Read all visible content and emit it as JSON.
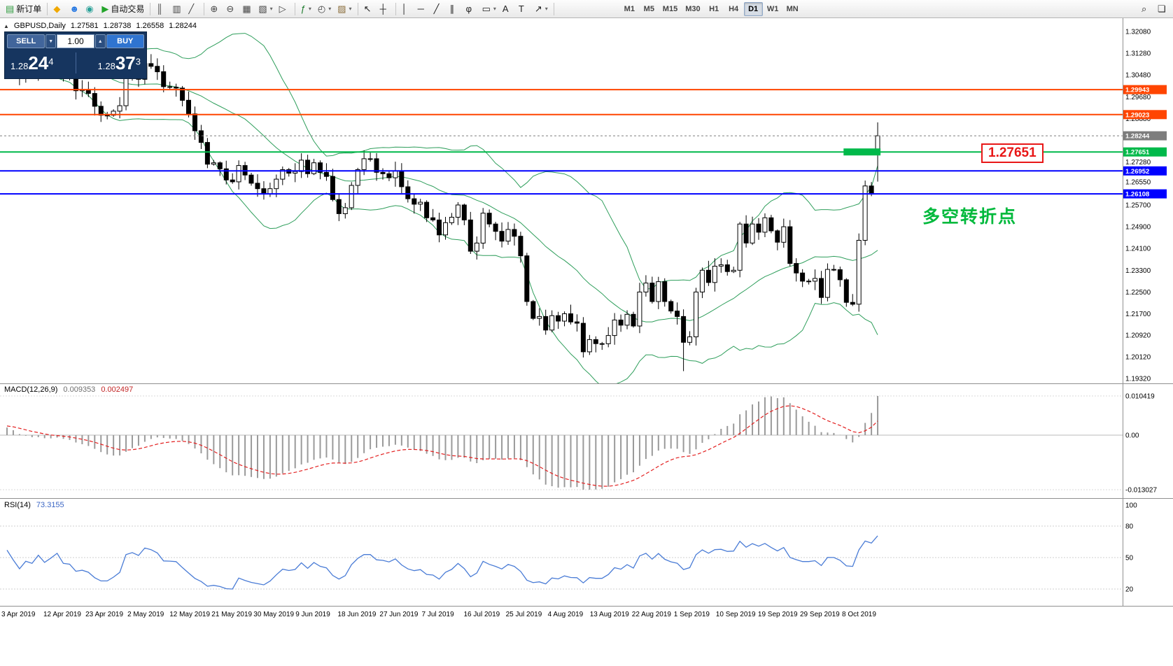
{
  "toolbar": {
    "groups": [
      {
        "name": "orders",
        "items": [
          {
            "icon": "new-order-icon",
            "glyph": "▤",
            "color": "#2f9b3f",
            "label": "新订单"
          }
        ]
      },
      {
        "name": "services",
        "items": [
          {
            "icon": "market-icon",
            "glyph": "◆",
            "color": "#f0a800"
          },
          {
            "icon": "profile-icon",
            "glyph": "☻",
            "color": "#2a7ae2"
          },
          {
            "icon": "community-icon",
            "glyph": "◉",
            "color": "#2aa198"
          },
          {
            "icon": "autotrade-icon",
            "glyph": "▶",
            "color": "#23a42a",
            "label": "自动交易"
          }
        ]
      },
      {
        "name": "chart-types",
        "items": [
          {
            "icon": "bar-chart-icon",
            "glyph": "║",
            "color": "#444444"
          },
          {
            "icon": "candlestick-icon",
            "glyph": "▥",
            "color": "#444444"
          },
          {
            "icon": "line-chart-icon",
            "glyph": "╱",
            "color": "#444444"
          }
        ]
      },
      {
        "name": "zoom",
        "items": [
          {
            "icon": "zoom-in-icon",
            "glyph": "⊕",
            "color": "#444444"
          },
          {
            "icon": "zoom-out-icon",
            "glyph": "⊖",
            "color": "#444444"
          },
          {
            "icon": "tile-windows-icon",
            "glyph": "▦",
            "color": "#444444"
          },
          {
            "icon": "auto-arrange-icon",
            "glyph": "▧",
            "color": "#444444",
            "dropdown": true
          },
          {
            "icon": "chart-shift-icon",
            "glyph": "▷",
            "color": "#444444"
          }
        ]
      },
      {
        "name": "tools",
        "items": [
          {
            "icon": "indicators-icon",
            "glyph": "ƒ",
            "color": "#1a7a2a",
            "dropdown": true
          },
          {
            "icon": "periods-icon",
            "glyph": "◴",
            "color": "#444444",
            "dropdown": true
          },
          {
            "icon": "templates-icon",
            "glyph": "▨",
            "color": "#8a6d3b",
            "dropdown": true
          }
        ]
      },
      {
        "name": "cursor",
        "items": [
          {
            "icon": "cursor-icon",
            "glyph": "↖",
            "color": "#222222"
          },
          {
            "icon": "crosshair-icon",
            "glyph": "┼",
            "color": "#222222"
          }
        ]
      },
      {
        "name": "objects",
        "items": [
          {
            "icon": "vertical-line-icon",
            "glyph": "│",
            "color": "#222222"
          },
          {
            "icon": "horizontal-line-icon",
            "glyph": "─",
            "color": "#222222"
          },
          {
            "icon": "trendline-icon",
            "glyph": "╱",
            "color": "#222222"
          },
          {
            "icon": "equidistant-channel-icon",
            "glyph": "∥",
            "color": "#222222"
          },
          {
            "icon": "fibonacci-icon",
            "glyph": "φ",
            "color": "#222222"
          },
          {
            "icon": "shapes-icon",
            "glyph": "▭",
            "color": "#222222",
            "dropdown": true
          },
          {
            "icon": "text-icon",
            "glyph": "A",
            "color": "#222222"
          },
          {
            "icon": "text-label-icon",
            "glyph": "T",
            "color": "#222222"
          },
          {
            "icon": "arrows-icon",
            "glyph": "↗",
            "color": "#222222",
            "dropdown": true
          }
        ]
      }
    ],
    "timeframes": [
      {
        "label": "M1"
      },
      {
        "label": "M5"
      },
      {
        "label": "M15"
      },
      {
        "label": "M30"
      },
      {
        "label": "H1"
      },
      {
        "label": "H4"
      },
      {
        "label": "D1",
        "active": true
      },
      {
        "label": "W1"
      },
      {
        "label": "MN"
      }
    ],
    "right_items": [
      {
        "icon": "search-icon",
        "glyph": "⌕"
      },
      {
        "icon": "window-list-icon",
        "glyph": "❏"
      }
    ]
  },
  "chart": {
    "one_click_toggle_glyph": "▲",
    "symbol_header": {
      "symbol": "GBPUSD,Daily",
      "open": "1.27581",
      "high": "1.28738",
      "low": "1.26558",
      "close": "1.28244"
    },
    "annotation": {
      "text": "多空转折点",
      "color": "#00b93c"
    },
    "price_flag": {
      "text": "1.27651",
      "color": "#e81717"
    }
  },
  "trade_panel": {
    "sell_label": "SELL",
    "buy_label": "BUY",
    "lot": "1.00",
    "lot_down_glyph": "▼",
    "lot_up_glyph": "▲",
    "sell_price": {
      "prefix": "1.28",
      "main": "24",
      "sup": "4"
    },
    "buy_price": {
      "prefix": "1.28",
      "main": "37",
      "sup": "3"
    }
  },
  "chart_data": [
    {
      "type": "candlestick",
      "symbol": "GBPUSD",
      "timeframe": "Daily",
      "latest_ohlc": {
        "open": 1.27581,
        "high": 1.28738,
        "low": 1.26558,
        "close": 1.28244
      },
      "price_axis_ticks": [
        "1.32080",
        "1.31280",
        "1.30480",
        "1.29680",
        "1.28880",
        "1.27280",
        "1.26550",
        "1.25700",
        "1.24900",
        "1.24100",
        "1.23300",
        "1.22500",
        "1.21700",
        "1.20920",
        "1.20120",
        "1.19320"
      ],
      "x_axis_dates": [
        "3 Apr 2019",
        "12 Apr 2019",
        "23 Apr 2019",
        "2 May 2019",
        "12 May 2019",
        "21 May 2019",
        "30 May 2019",
        "9 Jun 2019",
        "18 Jun 2019",
        "27 Jun 2019",
        "7 Jul 2019",
        "16 Jul 2019",
        "25 Jul 2019",
        "4 Aug 2019",
        "13 Aug 2019",
        "22 Aug 2019",
        "1 Sep 2019",
        "10 Sep 2019",
        "19 Sep 2019",
        "29 Sep 2019",
        "8 Oct 2019"
      ],
      "prehistory_closes": [
        1.306,
        1.3075,
        1.309,
        1.3105,
        1.312,
        1.3135,
        1.315,
        1.3142,
        1.3128,
        1.3112,
        1.3098,
        1.3108,
        1.3122,
        1.3136,
        1.315,
        1.3158,
        1.3144,
        1.313,
        1.3118
      ],
      "closes": [
        1.311,
        1.3077,
        1.3037,
        1.3065,
        1.3055,
        1.309,
        1.3055,
        1.3075,
        1.31,
        1.3045,
        1.304,
        1.299,
        1.2995,
        1.298,
        1.2933,
        1.29,
        1.29,
        1.2915,
        1.2935,
        1.3035,
        1.305,
        1.3032,
        1.309,
        1.308,
        1.306,
        1.3005,
        1.3003,
        1.3,
        1.2955,
        1.2905,
        1.2843,
        1.28,
        1.272,
        1.2725,
        1.2703,
        1.2662,
        1.2655,
        1.2715,
        1.268,
        1.265,
        1.263,
        1.261,
        1.263,
        1.2665,
        1.27,
        1.2687,
        1.2693,
        1.2735,
        1.2685,
        1.2725,
        1.269,
        1.2675,
        1.259,
        1.2538,
        1.256,
        1.2642,
        1.27,
        1.274,
        1.274,
        1.269,
        1.2685,
        1.267,
        1.2695,
        1.2637,
        1.2593,
        1.2573,
        1.258,
        1.2523,
        1.2515,
        1.246,
        1.2505,
        1.2525,
        1.257,
        1.2515,
        1.24,
        1.243,
        1.254,
        1.25,
        1.2473,
        1.2437,
        1.248,
        1.2455,
        1.2383,
        1.2215,
        1.2153,
        1.216,
        1.211,
        1.2163,
        1.2143,
        1.217,
        1.214,
        1.2135,
        1.203,
        1.2075,
        1.206,
        1.206,
        1.209,
        1.2147,
        1.2128,
        1.2168,
        1.2125,
        1.225,
        1.2283,
        1.2215,
        1.2288,
        1.2215,
        1.218,
        1.216,
        1.2065,
        1.2085,
        1.225,
        1.233,
        1.2285,
        1.2345,
        1.235,
        1.2325,
        1.233,
        1.25,
        1.243,
        1.25,
        1.247,
        1.2523,
        1.2475,
        1.2433,
        1.249,
        1.2355,
        1.232,
        1.229,
        1.229,
        1.23,
        1.223,
        1.2333,
        1.2332,
        1.2295,
        1.2212,
        1.2205,
        1.244,
        1.264,
        1.2611,
        1.28244
      ],
      "special_lows": {
        "108": 1.1959
      },
      "overlays": [
        {
          "name": "bollinger-bands",
          "period": 20,
          "deviation": 2,
          "color": "#2e9e5b"
        }
      ],
      "levels": [
        {
          "name": "resistance-upper",
          "price": 1.29943,
          "label": "1.29943",
          "color": "#ff4500",
          "style": "solid",
          "width": 2
        },
        {
          "name": "resistance-lower",
          "price": 1.29023,
          "label": "1.29023",
          "color": "#ff4500",
          "style": "solid",
          "width": 2
        },
        {
          "name": "pivot-green",
          "price": 1.27651,
          "label": "1.27651",
          "color": "#00b94a",
          "style": "solid",
          "width": 2
        },
        {
          "name": "support-upper",
          "price": 1.26952,
          "label": "1.26952",
          "color": "#0000ff",
          "style": "solid",
          "width": 2
        },
        {
          "name": "support-lower",
          "price": 1.26108,
          "label": "1.26108",
          "color": "#0000ff",
          "style": "solid",
          "width": 2
        },
        {
          "name": "current-price",
          "price": 1.28244,
          "label": "1.28244",
          "color": "#7d7d7d",
          "style": "dash",
          "width": 1
        }
      ],
      "highlight_zone": {
        "price": 1.27651,
        "from_candle": 134,
        "to_candle": 139,
        "color": "#00b94a"
      }
    },
    {
      "type": "macd",
      "title": "MACD(12,26,9)",
      "params": [
        12,
        26,
        9
      ],
      "value_main": "0.009353",
      "value_signal": "0.002497",
      "axis_labels": [
        "0.010419",
        "0.00",
        "-0.013027"
      ],
      "histogram_color": "#9a9a9a",
      "signal_color": "#e32020"
    },
    {
      "type": "rsi",
      "title": "RSI(14)",
      "period": 14,
      "value": "73.3155",
      "axis_labels": [
        "100",
        "80",
        "50",
        "20"
      ],
      "line_color": "#4a7cd6"
    }
  ]
}
